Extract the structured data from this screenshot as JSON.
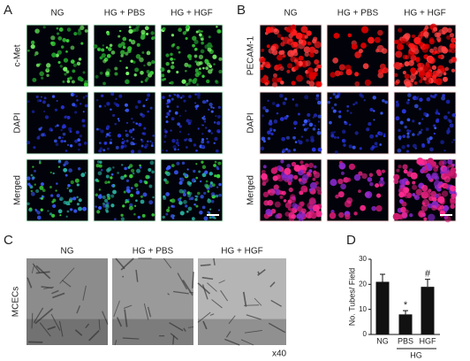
{
  "panels": {
    "A": {
      "label": "A",
      "columns": [
        "NG",
        "HG + PBS",
        "HG + HGF"
      ],
      "rows": [
        "c-Met",
        "DAPI",
        "Merged"
      ]
    },
    "B": {
      "label": "B",
      "columns": [
        "NG",
        "HG + PBS",
        "HG + HGF"
      ],
      "rows": [
        "PECAM-1",
        "DAPI",
        "Merged"
      ]
    },
    "C": {
      "label": "C",
      "columns": [
        "NG",
        "HG + PBS",
        "HG + HGF"
      ],
      "rows": [
        "MCECs"
      ],
      "magnification": "x40"
    }
  },
  "chart_data": {
    "type": "bar",
    "label": "D",
    "y_label": "No. Tubes/ Field",
    "categories": [
      "NG",
      "PBS",
      "HGF"
    ],
    "group_label": "HG",
    "values": [
      21,
      8,
      19
    ],
    "errors": [
      3,
      1.5,
      3
    ],
    "value_annotations": [
      null,
      "*",
      "#"
    ],
    "color": "#111111",
    "ylim": [
      0,
      30
    ],
    "yticks": [
      0,
      10,
      20,
      30
    ]
  }
}
